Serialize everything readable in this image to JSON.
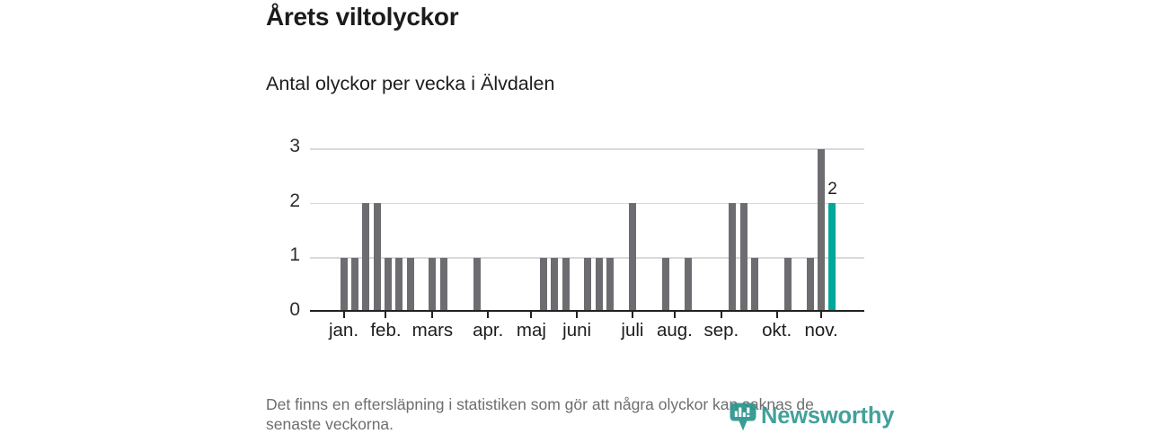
{
  "title": "Årets viltolyckor",
  "subtitle": "Antal olyckor per vecka i Älvdalen",
  "footnote_lines": [
    "Det finns en eftersläpning i statistiken som gör att några olyckor kan saknas de",
    "senaste veckorna."
  ],
  "logo": {
    "text": "Newsworthy",
    "icon": "newsworthy-marker-icon"
  },
  "colors": {
    "bar": "#6d6d71",
    "highlight": "#00a79b",
    "axis": "#222222",
    "grid": "#d9d9d9",
    "title_text": "#1c1c1c",
    "muted_text": "#6e6e6e",
    "logo_teal": "rgba(41,148,140,0.88)"
  },
  "chart_data": {
    "type": "bar",
    "title": "Årets viltolyckor",
    "subtitle": "Antal olyckor per vecka i Älvdalen",
    "xlabel": "",
    "ylabel": "",
    "x_unit": "vecka (week of year)",
    "values": [
      1,
      1,
      2,
      2,
      1,
      1,
      1,
      0,
      1,
      1,
      0,
      0,
      1,
      0,
      0,
      0,
      0,
      0,
      1,
      1,
      1,
      0,
      1,
      1,
      1,
      0,
      2,
      0,
      0,
      1,
      0,
      1,
      0,
      0,
      0,
      2,
      2,
      1,
      0,
      0,
      1,
      0,
      1,
      3,
      2
    ],
    "first_week": 1,
    "highlight": {
      "week": 45,
      "value": 2,
      "label": "2"
    },
    "month_ticks": [
      {
        "label": "jan.",
        "week_pos": 1.0
      },
      {
        "label": "feb.",
        "week_pos": 4.8
      },
      {
        "label": "mars",
        "week_pos": 9.0
      },
      {
        "label": "apr.",
        "week_pos": 14.0
      },
      {
        "label": "maj",
        "week_pos": 17.9
      },
      {
        "label": "juni",
        "week_pos": 22.0
      },
      {
        "label": "juli",
        "week_pos": 27.0
      },
      {
        "label": "aug.",
        "week_pos": 30.8
      },
      {
        "label": "sep.",
        "week_pos": 35.0
      },
      {
        "label": "okt.",
        "week_pos": 40.0
      },
      {
        "label": "nov.",
        "week_pos": 44.0
      }
    ],
    "yticks": [
      0,
      1,
      2,
      3
    ],
    "ylim": [
      0,
      3
    ],
    "grid": true,
    "legend": false
  }
}
